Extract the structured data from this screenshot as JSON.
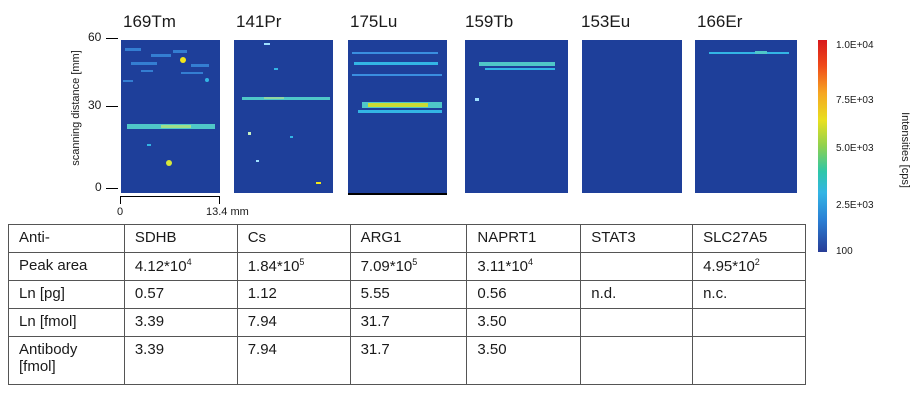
{
  "panels": [
    {
      "label": "169Tm"
    },
    {
      "label": "141Pr"
    },
    {
      "label": "175Lu"
    },
    {
      "label": "159Tb"
    },
    {
      "label": "153Eu"
    },
    {
      "label": "166Er"
    }
  ],
  "y_axis": {
    "title": "scanning distance [mm]",
    "ticks": [
      "60",
      "30",
      "0"
    ]
  },
  "x_axis": {
    "ticks": [
      "0",
      "13.4 mm"
    ]
  },
  "colorbar": {
    "title": "Intensities [cps]",
    "labels": [
      "1.0E+04",
      "7.5E+03",
      "5.0E+03",
      "2.5E+03",
      "100"
    ],
    "colors": {
      "high": "#d7191c",
      "mid": "#8fd14f",
      "low": "#283c96"
    }
  },
  "table": {
    "rows": [
      {
        "head": "Anti-",
        "cells": [
          "SDHB",
          "Cs",
          "ARG1",
          "NAPRT1",
          "STAT3",
          "SLC27A5"
        ]
      },
      {
        "head": "Peak area",
        "cells": [
          {
            "base": "4.12*10",
            "exp": "4"
          },
          {
            "base": "1.84*10",
            "exp": "5"
          },
          {
            "base": "7.09*10",
            "exp": "5"
          },
          {
            "base": "3.11*10",
            "exp": "4"
          },
          {
            "base": "",
            "exp": ""
          },
          {
            "base": "4.95*10",
            "exp": "2"
          }
        ]
      },
      {
        "head": "Ln [pg]",
        "cells": [
          "0.57",
          "1.12",
          "5.55",
          "0.56",
          "n.d.",
          "n.c."
        ]
      },
      {
        "head": "Ln [fmol]",
        "cells": [
          "3.39",
          "7.94",
          "31.7",
          "3.50",
          "",
          ""
        ]
      },
      {
        "head": "Antibody [fmol]",
        "cells": [
          "3.39",
          "7.94",
          "31.7",
          "3.50",
          "",
          ""
        ]
      }
    ]
  }
}
